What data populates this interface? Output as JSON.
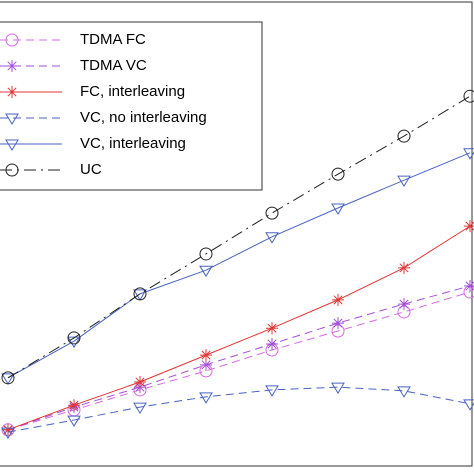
{
  "chart_data": {
    "type": "line",
    "x": [
      0,
      1,
      2,
      3,
      4,
      5,
      6,
      7
    ],
    "xlim": [
      0,
      7
    ],
    "ylim": [
      0,
      100
    ],
    "legend": "upper left",
    "series": [
      {
        "name": "TDMA FC",
        "color": "#d66be0",
        "marker": "circle",
        "linestyle": "dashed",
        "values": [
          7.8,
          12.1,
          16.4,
          20.5,
          25.0,
          29.1,
          33.2,
          37.5
        ]
      },
      {
        "name": "TDMA VC",
        "color": "#a24fd6",
        "marker": "star",
        "linestyle": "dashed",
        "values": [
          7.8,
          12.7,
          17.0,
          21.8,
          26.3,
          30.8,
          34.9,
          38.8
        ]
      },
      {
        "name": "FC, interleaving",
        "color": "#e03535",
        "marker": "star",
        "linestyle": "solid",
        "values": [
          7.8,
          13.1,
          18.1,
          23.9,
          29.7,
          35.8,
          42.7,
          51.7
        ]
      },
      {
        "name": "VC, no interleaving",
        "color": "#4a63c2",
        "marker": "triangle",
        "linestyle": "dashed",
        "values": [
          7.3,
          9.9,
          12.7,
          14.9,
          16.4,
          17.0,
          16.2,
          13.4
        ]
      },
      {
        "name": "VC, interleaving",
        "color": "#4a63c2",
        "marker": "triangle",
        "linestyle": "solid",
        "values": [
          19.0,
          26.9,
          37.1,
          42.2,
          49.4,
          55.6,
          61.6,
          67.5
        ]
      },
      {
        "name": "UC",
        "color": "#222222",
        "marker": "circle",
        "linestyle": "dashdot",
        "values": [
          19.0,
          27.6,
          37.1,
          45.7,
          54.5,
          62.9,
          71.1,
          79.7
        ]
      }
    ]
  }
}
